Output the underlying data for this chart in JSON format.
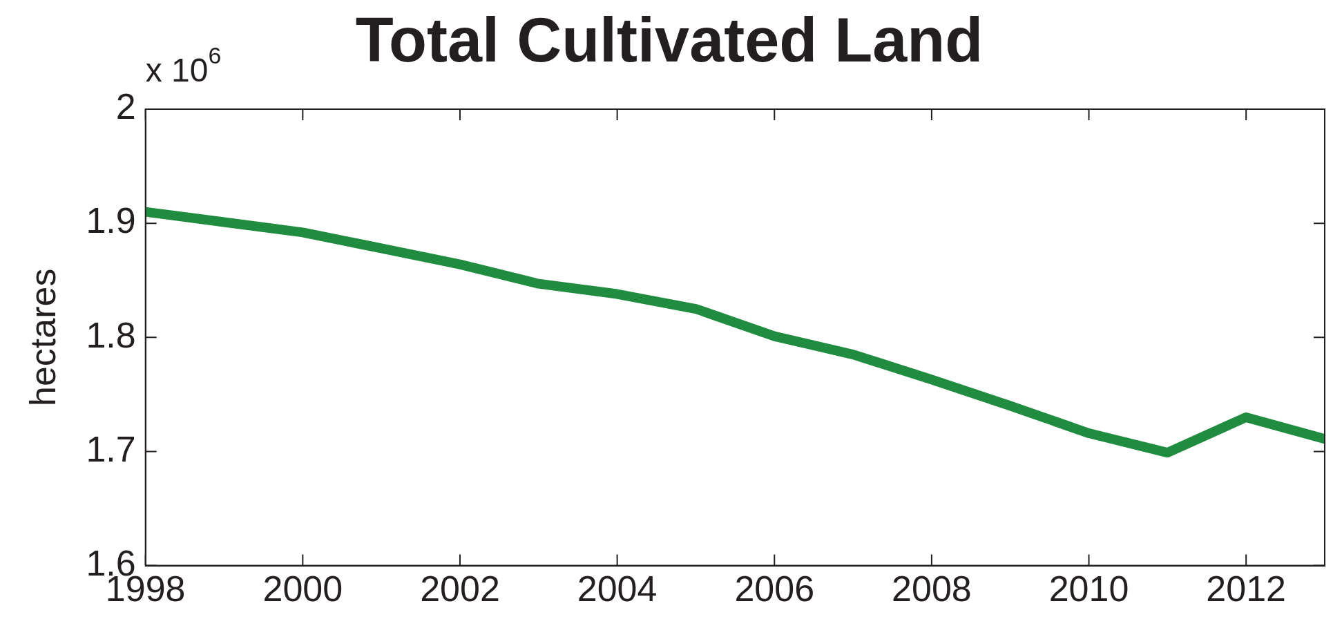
{
  "chart_data": {
    "type": "line",
    "title": "Total Cultivated Land",
    "ylabel": "hectares",
    "annotations": [
      "x 10$^{6}$"
    ],
    "x": [
      1998,
      1999,
      2000,
      2001,
      2002,
      2003,
      2004,
      2005,
      2006,
      2007,
      2008,
      2009,
      2010,
      2011,
      2012,
      2013
    ],
    "series": [
      {
        "color": "#1f8c3f",
        "values": [
          1.91,
          1.901,
          1.892,
          1.878,
          1.864,
          1.847,
          1.838,
          1.825,
          1.801,
          1.785,
          1.763,
          1.74,
          1.716,
          1.699,
          1.73,
          1.711
        ]
      }
    ],
    "xlim": [
      1998,
      2013
    ],
    "xticks": [
      1998,
      2000,
      2002,
      2004,
      2006,
      2008,
      2010,
      2012
    ],
    "ylim": [
      1.6,
      2
    ],
    "yticks": [
      1.6,
      1.7,
      1.8,
      1.9,
      2
    ],
    "grid": false,
    "legend": false,
    "marker": "none",
    "line_style": "solid"
  }
}
